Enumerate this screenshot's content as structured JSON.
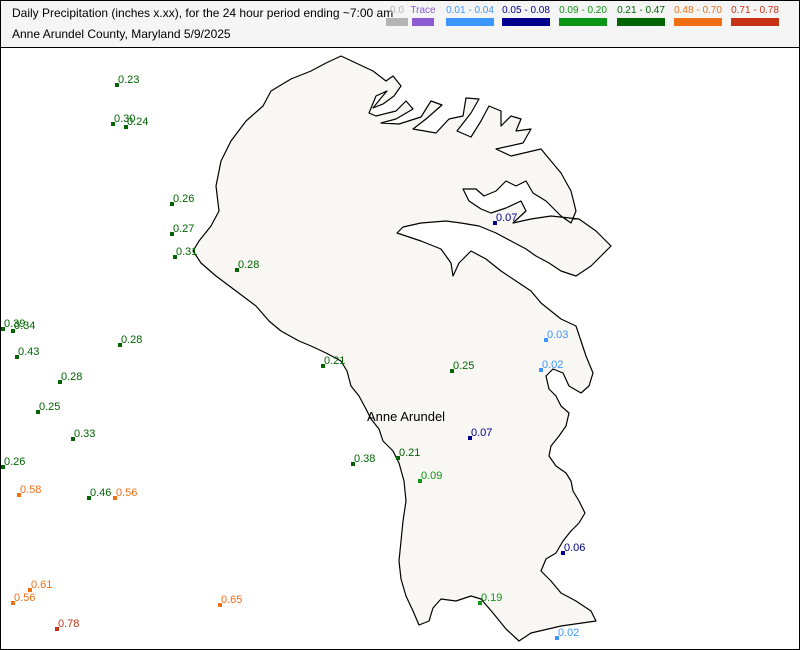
{
  "title_line1": "Daily Precipitation (inches  x.xx),  for the 24 hour period ending ~7:00 am",
  "title_line2": "Anne Arundel County, Maryland  5/9/2025",
  "legend": [
    {
      "label": "0.0",
      "color": "#b4b4b4"
    },
    {
      "label": "Trace",
      "color": "#8c5ad2"
    },
    {
      "label": "0.01 - 0.04",
      "color": "#3c96ff"
    },
    {
      "label": "0.05 - 0.08",
      "color": "#00008c"
    },
    {
      "label": "0.09 - 0.20",
      "color": "#0a9614"
    },
    {
      "label": "0.21 - 0.47",
      "color": "#006400"
    },
    {
      "label": "0.48 - 0.70",
      "color": "#f06e14"
    },
    {
      "label": "0.71 - 0.78",
      "color": "#c83214"
    }
  ],
  "county_label": "Anne Arundel",
  "stations": [
    {
      "value": "0.23"
    },
    {
      "value": "0.30"
    },
    {
      "value": "0.24"
    },
    {
      "value": "0.26"
    },
    {
      "value": "0.27"
    },
    {
      "value": "0.31"
    },
    {
      "value": "0.28"
    },
    {
      "value": "0.39"
    },
    {
      "value": "0.34"
    },
    {
      "value": "0.43"
    },
    {
      "value": "0.28"
    },
    {
      "value": "0.28"
    },
    {
      "value": "0.25"
    },
    {
      "value": "0.33"
    },
    {
      "value": "0.26"
    },
    {
      "value": "0.58"
    },
    {
      "value": "0.46"
    },
    {
      "value": "0.56"
    },
    {
      "value": "0.21"
    },
    {
      "value": "0.07"
    },
    {
      "value": "0.03"
    },
    {
      "value": "0.02"
    },
    {
      "value": "0.25"
    },
    {
      "value": "0.07"
    },
    {
      "value": "0.38"
    },
    {
      "value": "0.21"
    },
    {
      "value": "0.09"
    },
    {
      "value": "0.06"
    },
    {
      "value": "0.61"
    },
    {
      "value": "0.56"
    },
    {
      "value": "0.65"
    },
    {
      "value": "0.78"
    },
    {
      "value": "0.19"
    },
    {
      "value": "0.02"
    }
  ]
}
